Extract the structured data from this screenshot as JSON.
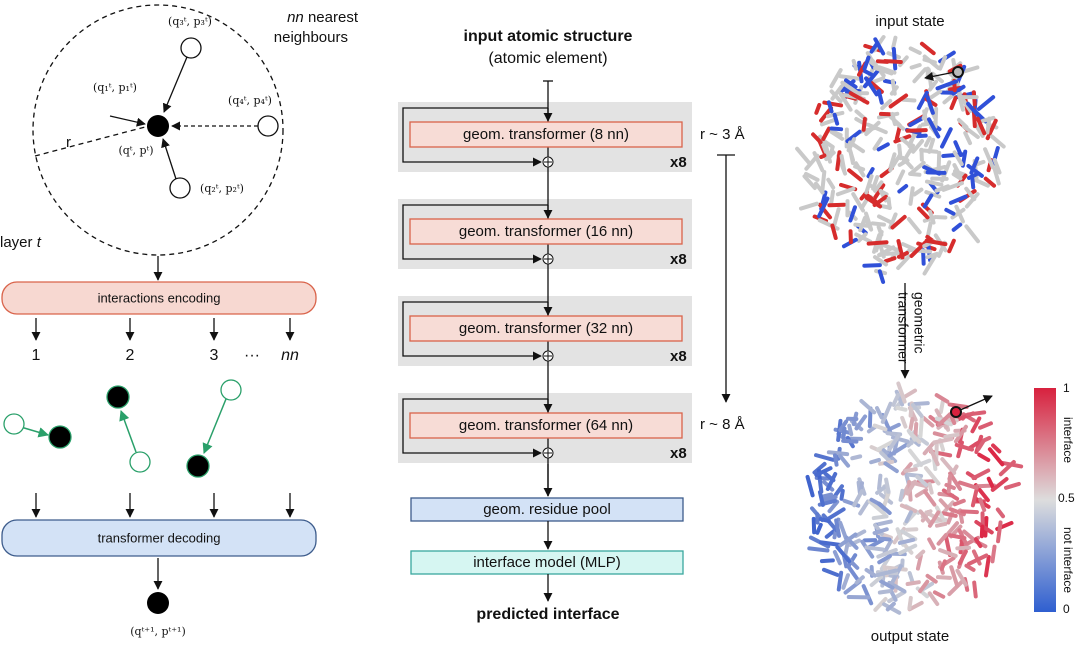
{
  "neighbourhood": {
    "title_var": "nn",
    "title_line1": "nearest",
    "title_line2": "neighbours",
    "nodes": [
      "(q₃ᵗ, p₃ᵗ)",
      "(q₁ᵗ, p₁ᵗ)",
      "(q₄ᵗ, p₄ᵗ)",
      "(qᵗ, pᵗ)",
      "(q₂ᵗ, p₂ᵗ)"
    ],
    "radius": "r",
    "layer": "layer",
    "layer_var": "t"
  },
  "encoding": {
    "label": "interactions encoding",
    "outputs": [
      "1",
      "2",
      "3",
      "···",
      "nn"
    ]
  },
  "decoding": {
    "label": "transformer decoding",
    "output": "(qᵗ⁺¹, pᵗ⁺¹)"
  },
  "pipeline": {
    "input_title": "input atomic structure",
    "input_subtitle": "(atomic element)",
    "blocks": [
      {
        "label": "geom. transformer (8 nn)",
        "repeat": "x8"
      },
      {
        "label": "geom. transformer (16 nn)",
        "repeat": "x8"
      },
      {
        "label": "geom. transformer (32 nn)",
        "repeat": "x8"
      },
      {
        "label": "geom. transformer (64 nn)",
        "repeat": "x8"
      }
    ],
    "range_start": "r ~ 3 Å",
    "range_end": "r ~ 8 Å",
    "pool": "geom. residue pool",
    "mlp": "interface model (MLP)",
    "output": "predicted interface"
  },
  "structures": {
    "input": "input state",
    "transition": [
      "geometric",
      "transformer"
    ],
    "output": "output state",
    "colorbar": {
      "top": "1",
      "middle": "0.5",
      "bottom": "0",
      "upper_label": "interface",
      "lower_label": "not interface"
    }
  }
}
